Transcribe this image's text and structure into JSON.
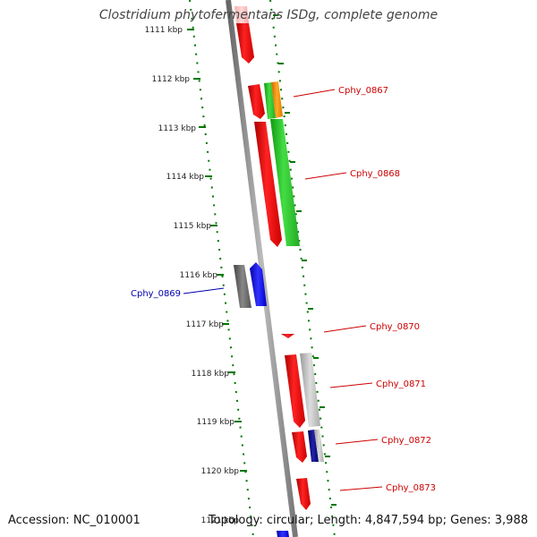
{
  "title": "Clostridium phytofermentans ISDg, complete genome",
  "footer": {
    "accession": "Accession: NC_010001",
    "summary": "Topology: circular; Length: 4,847,594 bp; Genes: 3,988"
  },
  "colors": {
    "forward": "#ff0000",
    "green": "#33cc33",
    "orange": "#ff9900",
    "gray": "#777777",
    "light_gray": "#bbbbbb",
    "blue": "#0000ff",
    "navy": "#000088",
    "backbone": "#888888",
    "ruler": "#007700",
    "label_red": "#cc0000",
    "label_blue": "#0000aa"
  },
  "ticks": [
    "1111 kbp",
    "1112 kbp",
    "1113 kbp",
    "1114 kbp",
    "1115 kbp",
    "1116 kbp",
    "1117 kbp",
    "1118 kbp",
    "1119 kbp",
    "1120 kbp",
    "1121 kbp"
  ],
  "genes": [
    {
      "label": "Cphy_0867",
      "color": "#cc0000"
    },
    {
      "label": "Cphy_0868",
      "color": "#cc0000"
    },
    {
      "label": "Cphy_0869",
      "color": "#0000aa"
    },
    {
      "label": "Cphy_0870",
      "color": "#cc0000"
    },
    {
      "label": "Cphy_0871",
      "color": "#cc0000"
    },
    {
      "label": "Cphy_0872",
      "color": "#cc0000"
    },
    {
      "label": "Cphy_0873",
      "color": "#cc0000"
    }
  ]
}
